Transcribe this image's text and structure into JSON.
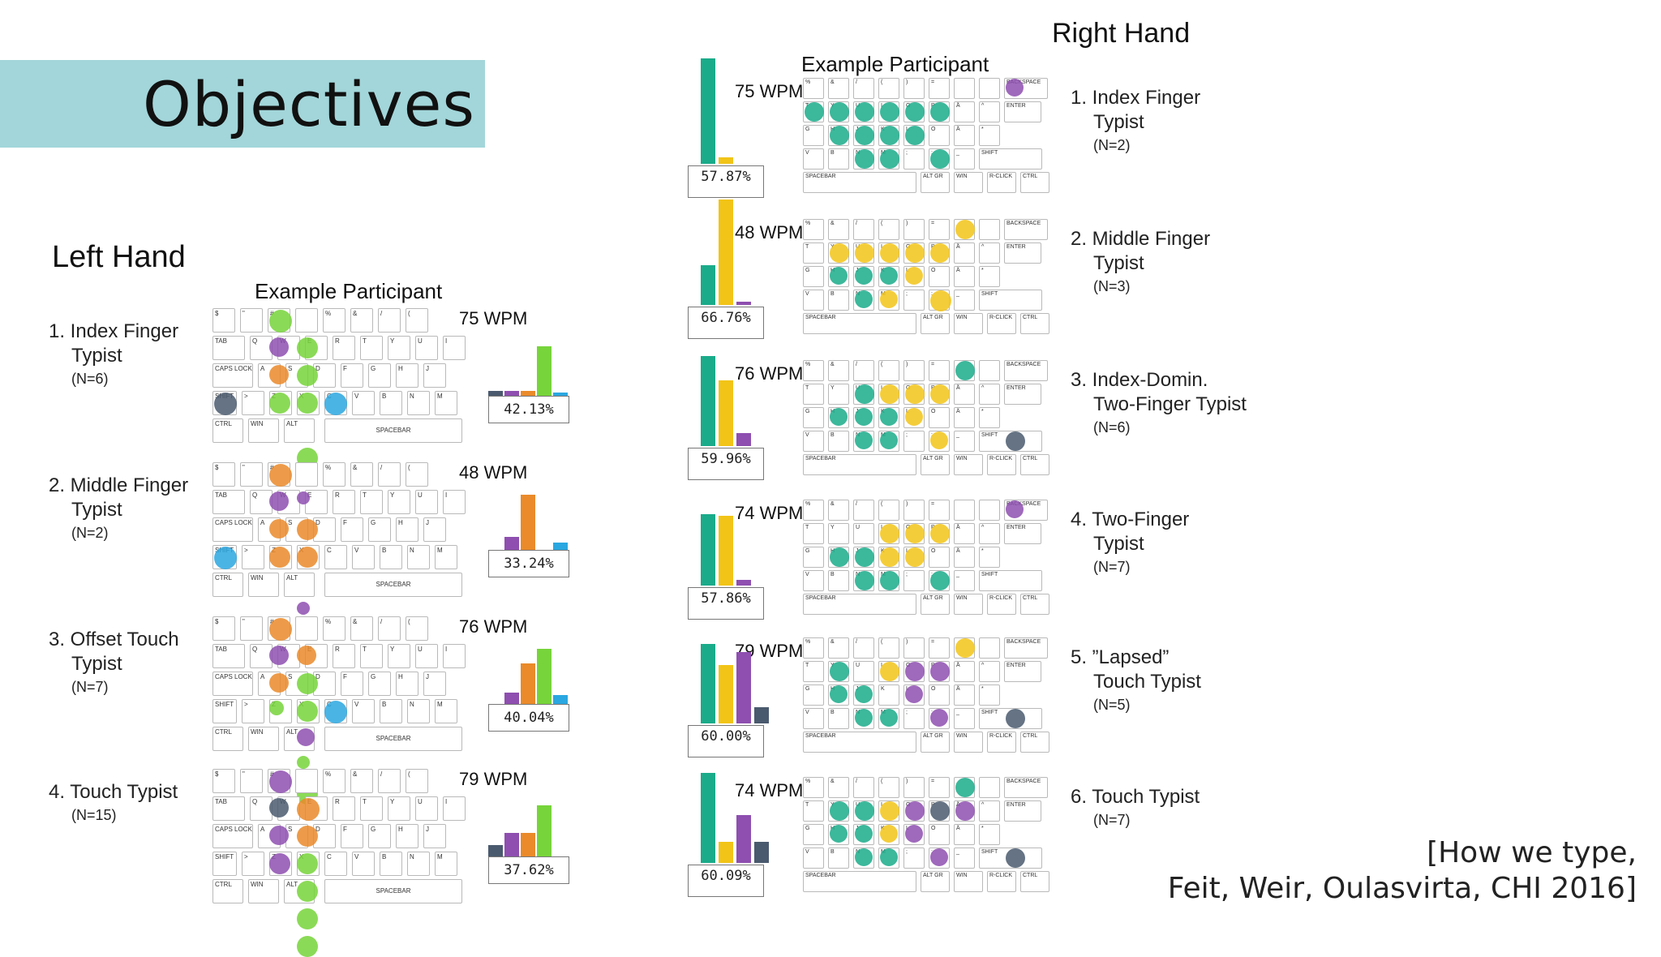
{
  "slide_title": "Objectives",
  "left_hand": {
    "heading": "Left Hand",
    "sub": "Example Participant",
    "items": [
      {
        "num_title": "1. Index Finger",
        "cont": "Typist",
        "n": "(N=6)",
        "wpm": "75 WPM",
        "pct": "42.13%",
        "bars": [
          0.08,
          0.08,
          0.08,
          0.85,
          0.06
        ]
      },
      {
        "num_title": "2. Middle Finger",
        "cont": "Typist",
        "n": "(N=2)",
        "wpm": "48 WPM",
        "pct": "33.24%",
        "bars": [
          0.0,
          0.22,
          0.95,
          0.0,
          0.12
        ]
      },
      {
        "num_title": "3. Offset Touch",
        "cont": "Typist",
        "n": "(N=7)",
        "wpm": "76 WPM",
        "pct": "40.04%",
        "bars": [
          0.0,
          0.2,
          0.7,
          0.95,
          0.15
        ]
      },
      {
        "num_title": "4. Touch Typist",
        "cont": "",
        "n": "(N=15)",
        "wpm": "79 WPM",
        "pct": "37.62%",
        "bars": [
          0.2,
          0.4,
          0.4,
          0.88,
          0.0
        ]
      }
    ]
  },
  "right_hand": {
    "heading": "Right Hand",
    "sub": "Example Participant",
    "items": [
      {
        "num_title": "1. Index Finger",
        "cont": "Typist",
        "n": "(N=2)",
        "wpm": "75 WPM",
        "pct": "57.87%",
        "bars": [
          1.0,
          0.06,
          0.0
        ]
      },
      {
        "num_title": "2. Middle Finger",
        "cont": "Typist",
        "n": "(N=3)",
        "wpm": "48 WPM",
        "pct": "66.76%",
        "bars": [
          0.38,
          1.0,
          0.03
        ]
      },
      {
        "num_title": "3. Index-Domin.",
        "cont": "Two-Finger Typist",
        "n": "(N=6)",
        "wpm": "76 WPM",
        "pct": "59.96%",
        "bars": [
          0.85,
          0.62,
          0.12
        ]
      },
      {
        "num_title": "4. Two-Finger",
        "cont": "Typist",
        "n": "(N=7)",
        "wpm": "74 WPM",
        "pct": "57.86%",
        "bars": [
          0.68,
          0.66,
          0.05
        ]
      },
      {
        "num_title": "5. ”Lapsed”",
        "cont": "Touch Typist",
        "n": "(N=5)",
        "wpm": "79 WPM",
        "pct": "60.00%",
        "bars": [
          0.75,
          0.55,
          0.68,
          0.15
        ]
      },
      {
        "num_title": "6. Touch Typist",
        "cont": "",
        "n": "(N=7)",
        "wpm": "74 WPM",
        "pct": "60.09%",
        "bars": [
          0.85,
          0.2,
          0.45,
          0.2
        ]
      }
    ]
  },
  "left_keys": [
    [
      "$",
      "\"",
      "#",
      "",
      "%",
      "&",
      "/",
      "("
    ],
    [
      "TAB",
      "Q",
      "W",
      "E",
      "R",
      "T",
      "Y",
      "U",
      "I"
    ],
    [
      "CAPS LOCK",
      "A",
      "S",
      "D",
      "F",
      "G",
      "H",
      "J"
    ],
    [
      "SHIFT",
      ">",
      "Z",
      "X",
      "C",
      "V",
      "B",
      "N",
      "M"
    ],
    [
      "CTRL",
      "WIN",
      "ALT",
      "SPACEBAR"
    ]
  ],
  "right_keys": [
    [
      "%",
      "&",
      "/",
      "(",
      ")",
      "=",
      "",
      "",
      "BACKSPACE"
    ],
    [
      "T",
      "Y",
      "U",
      "I",
      "O",
      "P",
      "Å",
      "^",
      "ENTER"
    ],
    [
      "G",
      "H",
      "J",
      "K",
      "L",
      "Ö",
      "Ä",
      "*"
    ],
    [
      "V",
      "B",
      "N",
      "M",
      ";",
      ":",
      "_",
      "SHIFT"
    ],
    [
      "SPACEBAR",
      "ALT GR",
      "WIN",
      "R-CLICK",
      "CTRL"
    ]
  ],
  "colors": {
    "banner": "#a2d6da",
    "teal": "#1aab8a",
    "yellow": "#f2c417",
    "purple": "#8e4fb0",
    "orange": "#ea8a2a",
    "green": "#77d43a",
    "blue": "#2aa7e0",
    "slate": "#4a5a6e"
  },
  "citation": {
    "line1": "[How we type,",
    "line2": "Feit, Weir, Oulasvirta, CHI 2016]"
  }
}
